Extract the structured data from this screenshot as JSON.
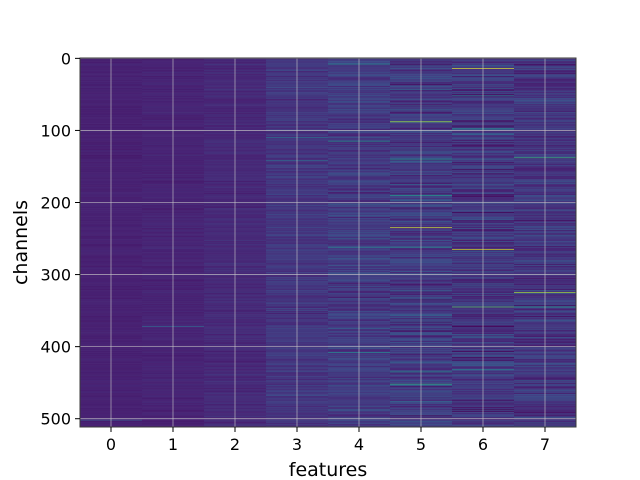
{
  "chart_data": {
    "type": "heatmap",
    "title": "",
    "xlabel": "features",
    "ylabel": "channels",
    "x_categories": [
      "0",
      "1",
      "2",
      "3",
      "4",
      "5",
      "6",
      "7"
    ],
    "y_ticks": [
      0,
      100,
      200,
      300,
      400,
      500
    ],
    "y_range": [
      0,
      511
    ],
    "n_channels": 512,
    "colormap": "viridis",
    "grid": true,
    "column_stats": [
      {
        "feature": "0",
        "typical_level": 0.12,
        "spread": 0.03
      },
      {
        "feature": "1",
        "typical_level": 0.13,
        "spread": 0.04
      },
      {
        "feature": "2",
        "typical_level": 0.15,
        "spread": 0.06
      },
      {
        "feature": "3",
        "typical_level": 0.2,
        "spread": 0.1
      },
      {
        "feature": "4",
        "typical_level": 0.22,
        "spread": 0.16
      },
      {
        "feature": "5",
        "typical_level": 0.22,
        "spread": 0.2
      },
      {
        "feature": "6",
        "typical_level": 0.2,
        "spread": 0.2
      },
      {
        "feature": "7",
        "typical_level": 0.2,
        "spread": 0.18
      }
    ],
    "highlights": [
      {
        "feature": "4",
        "channel": 8,
        "value": 0.55
      },
      {
        "feature": "4",
        "channel": 115,
        "value": 0.6
      },
      {
        "feature": "4",
        "channel": 262,
        "value": 0.55
      },
      {
        "feature": "4",
        "channel": 408,
        "value": 0.55
      },
      {
        "feature": "5",
        "channel": 88,
        "value": 0.9
      },
      {
        "feature": "5",
        "channel": 140,
        "value": 0.6
      },
      {
        "feature": "5",
        "channel": 190,
        "value": 0.65
      },
      {
        "feature": "5",
        "channel": 235,
        "value": 0.95
      },
      {
        "feature": "5",
        "channel": 262,
        "value": 0.6
      },
      {
        "feature": "5",
        "channel": 435,
        "value": 0.6
      },
      {
        "feature": "5",
        "channel": 452,
        "value": 0.7
      },
      {
        "feature": "6",
        "channel": 14,
        "value": 0.95
      },
      {
        "feature": "6",
        "channel": 52,
        "value": 0.55
      },
      {
        "feature": "6",
        "channel": 98,
        "value": 0.6
      },
      {
        "feature": "6",
        "channel": 265,
        "value": 0.95
      },
      {
        "feature": "6",
        "channel": 345,
        "value": 0.8
      },
      {
        "feature": "6",
        "channel": 432,
        "value": 0.55
      },
      {
        "feature": "7",
        "channel": 138,
        "value": 0.75
      },
      {
        "feature": "7",
        "channel": 325,
        "value": 0.9
      },
      {
        "feature": "7",
        "channel": 345,
        "value": 0.65
      },
      {
        "feature": "3",
        "channel": 110,
        "value": 0.45
      },
      {
        "feature": "3",
        "channel": 142,
        "value": 0.45
      },
      {
        "feature": "1",
        "channel": 372,
        "value": 0.4
      },
      {
        "feature": "0",
        "channel": 502,
        "value": 0.35
      }
    ]
  }
}
